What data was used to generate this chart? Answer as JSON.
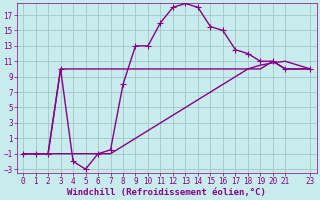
{
  "xlabel": "Windchill (Refroidissement éolien,°C)",
  "background_color": "#c8ecec",
  "grid_color": "#a0c8c8",
  "line_color": "#880088",
  "xlim": [
    -0.5,
    23.5
  ],
  "ylim": [
    -3.5,
    18.5
  ],
  "xticks": [
    0,
    1,
    2,
    3,
    4,
    5,
    6,
    7,
    8,
    9,
    10,
    11,
    12,
    13,
    14,
    15,
    16,
    17,
    18,
    19,
    20,
    21,
    23
  ],
  "yticks": [
    -3,
    -1,
    1,
    3,
    5,
    7,
    9,
    11,
    13,
    15,
    17
  ],
  "line1_x": [
    0,
    1,
    2,
    3,
    4,
    5,
    6,
    7,
    8,
    9,
    10,
    11,
    12,
    13,
    14,
    15,
    16,
    17,
    18,
    19,
    20,
    21,
    23
  ],
  "line1_y": [
    -1,
    -1,
    -1,
    10,
    -2,
    -3,
    -1,
    -0.5,
    8,
    13,
    13,
    16,
    18,
    18.5,
    18,
    15.5,
    15,
    12.5,
    12,
    11,
    11,
    10,
    10
  ],
  "line2_x": [
    0,
    1,
    2,
    3,
    10,
    11,
    12,
    13,
    14,
    15,
    16,
    17,
    18,
    19,
    20,
    21,
    23
  ],
  "line2_y": [
    -1,
    -1,
    -1,
    10,
    10,
    10,
    10,
    10,
    10,
    10,
    10,
    10,
    10,
    10,
    11,
    10,
    10
  ],
  "line3_x": [
    0,
    1,
    2,
    3,
    4,
    5,
    6,
    7,
    8,
    9,
    10,
    11,
    12,
    13,
    14,
    15,
    16,
    17,
    18,
    19,
    20,
    21,
    23
  ],
  "line3_y": [
    -1,
    -1,
    -1,
    -1,
    -1,
    -1,
    -1,
    -1,
    0,
    1,
    2,
    3,
    4,
    5,
    6,
    7,
    8,
    9,
    10,
    10.5,
    10.8,
    11,
    10
  ],
  "marker": "+",
  "marker_size": 4,
  "line_width": 1.0,
  "tick_fontsize": 5.5,
  "xlabel_fontsize": 6.5
}
